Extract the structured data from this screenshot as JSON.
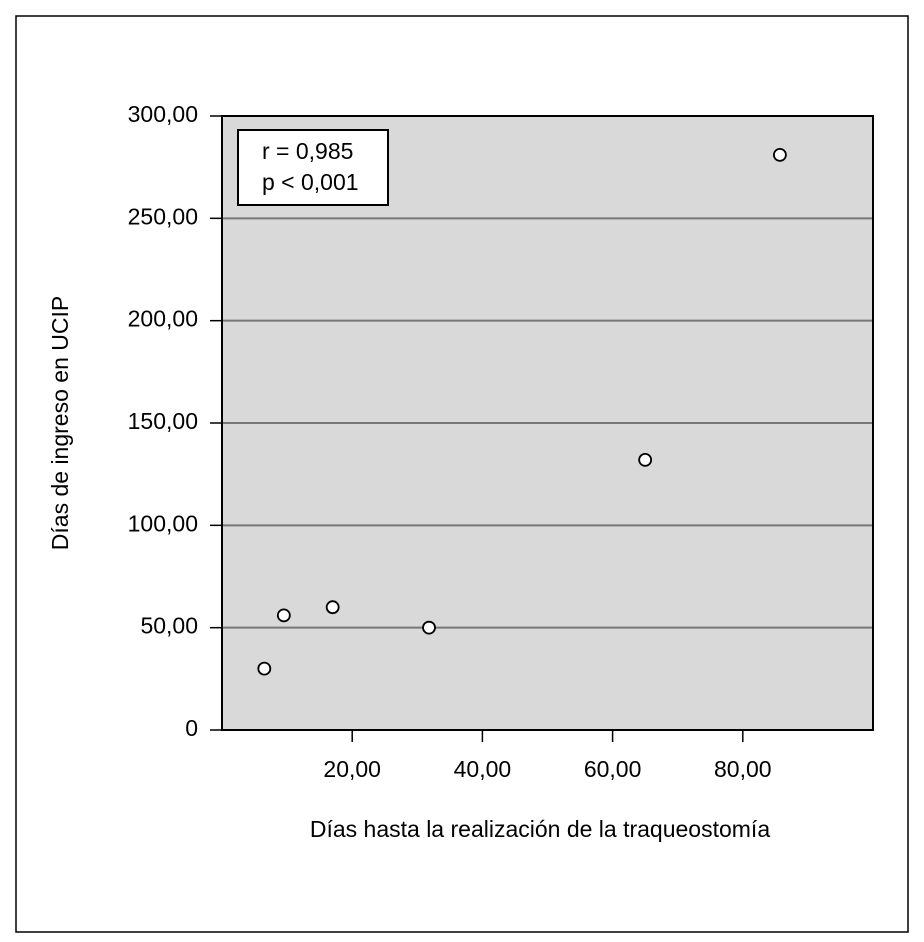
{
  "chart_data": {
    "type": "scatter",
    "x_label": "Días hasta la realización de la traqueostomía",
    "y_label": "Días de ingreso en UCIP",
    "annotations": [
      "r = 0,985",
      "p < 0,001"
    ],
    "x": [
      6.5,
      9.5,
      17,
      31.8,
      65,
      85.7
    ],
    "values": [
      30,
      56,
      60,
      50,
      132,
      281
    ],
    "color": "#000000",
    "xlim": [
      0,
      100
    ],
    "xticks": [
      {
        "value": 20,
        "label": "20,00"
      },
      {
        "value": 40,
        "label": "40,00"
      },
      {
        "value": 60,
        "label": "60,00"
      },
      {
        "value": 80,
        "label": "80,00"
      }
    ],
    "ylim": [
      0,
      300
    ],
    "yticks": [
      0,
      {
        "value": 50,
        "label": "50,00"
      },
      {
        "value": 100,
        "label": "100,00"
      },
      {
        "value": 150,
        "label": "150,00"
      },
      {
        "value": 200,
        "label": "200,00"
      },
      {
        "value": 250,
        "label": "250,00"
      },
      {
        "value": 300,
        "label": "300,00"
      }
    ],
    "grid": true
  }
}
